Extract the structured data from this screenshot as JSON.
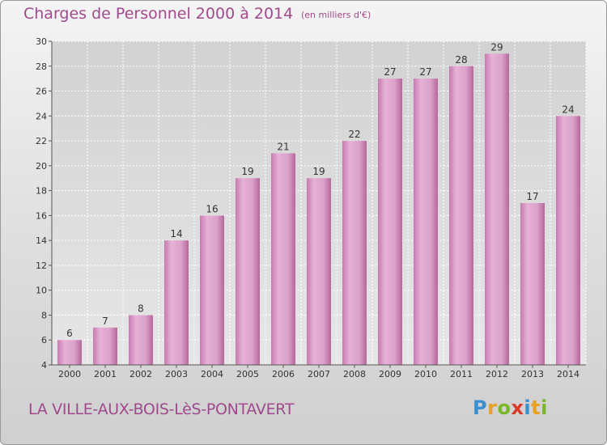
{
  "header": {
    "title": "Charges de Personnel 2000 à 2014",
    "subtitle": "(en milliers d'€)"
  },
  "footer": {
    "commune": "LA VILLE-AUX-BOIS-LèS-PONTAVERT",
    "logo_letters": [
      {
        "ch": "P",
        "color": "#3a8fd0"
      },
      {
        "ch": "r",
        "color": "#e8a020"
      },
      {
        "ch": "o",
        "color": "#78b828"
      },
      {
        "ch": "x",
        "color": "#d83a2a"
      },
      {
        "ch": "i",
        "color": "#3a8fd0"
      },
      {
        "ch": "t",
        "color": "#e8a020"
      },
      {
        "ch": "i",
        "color": "#78b828"
      }
    ]
  },
  "colors": {
    "accent": "#a0498c",
    "bar": "#d99bc6"
  },
  "chart_data": {
    "type": "bar",
    "categories": [
      "2000",
      "2001",
      "2002",
      "2003",
      "2004",
      "2005",
      "2006",
      "2007",
      "2008",
      "2009",
      "2010",
      "2011",
      "2012",
      "2013",
      "2014"
    ],
    "values": [
      6,
      7,
      8,
      14,
      16,
      19,
      21,
      19,
      22,
      27,
      27,
      28,
      29,
      17,
      24
    ],
    "ylim": [
      4,
      30
    ],
    "yticks": [
      4,
      6,
      8,
      10,
      12,
      14,
      16,
      18,
      20,
      22,
      24,
      26,
      28,
      30
    ],
    "grid": true
  }
}
